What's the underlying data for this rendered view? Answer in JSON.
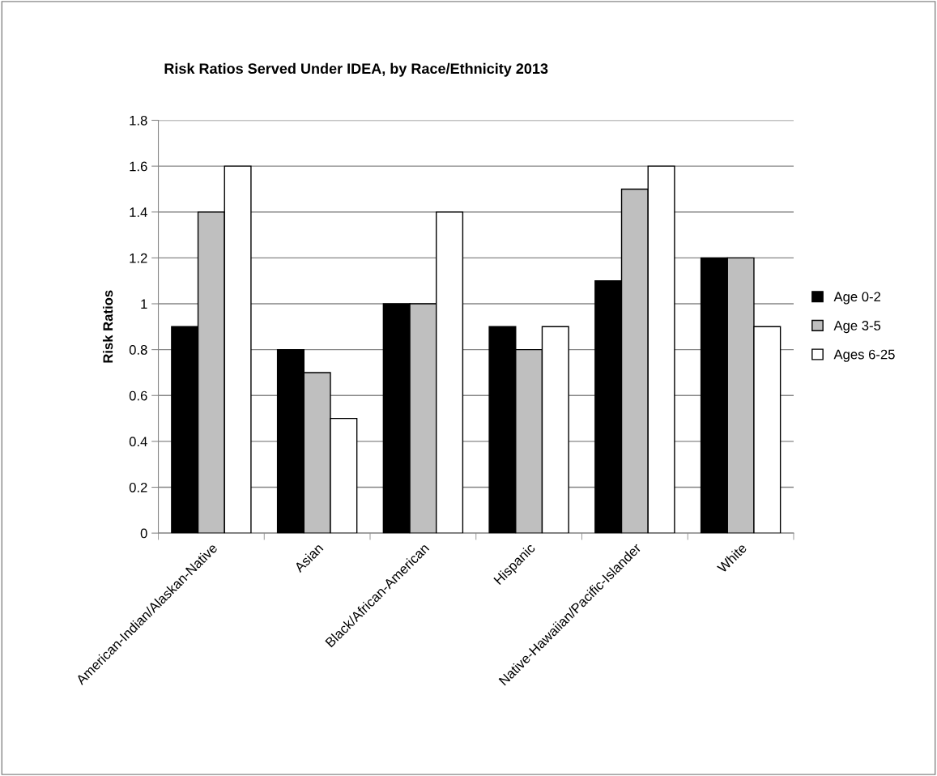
{
  "chart_data": {
    "type": "bar",
    "title": "Risk Ratios Served Under IDEA, by Race/Ethnicity 2013",
    "ylabel": "Risk Ratios",
    "categories": [
      "American-Indian/Alaskan-Native",
      "Asian",
      "Black/African-American",
      "Hispanic",
      "Native-Hawaiian/Pacific-Islander",
      "White"
    ],
    "series": [
      {
        "name": "Age 0-2",
        "color": "#000000",
        "values": [
          0.9,
          0.8,
          1.0,
          0.9,
          1.1,
          1.2
        ]
      },
      {
        "name": "Age 3-5",
        "color": "#bfbfbf",
        "values": [
          1.4,
          0.7,
          1.0,
          0.8,
          1.5,
          1.2
        ]
      },
      {
        "name": "Ages 6-25",
        "color": "#ffffff",
        "values": [
          1.6,
          0.5,
          1.4,
          0.9,
          1.6,
          0.9
        ]
      }
    ],
    "ylim": [
      0,
      1.8
    ],
    "yticks": [
      0,
      0.2,
      0.4,
      0.6,
      0.8,
      1,
      1.2,
      1.4,
      1.6,
      1.8
    ],
    "grid": "y",
    "legend": "right"
  }
}
